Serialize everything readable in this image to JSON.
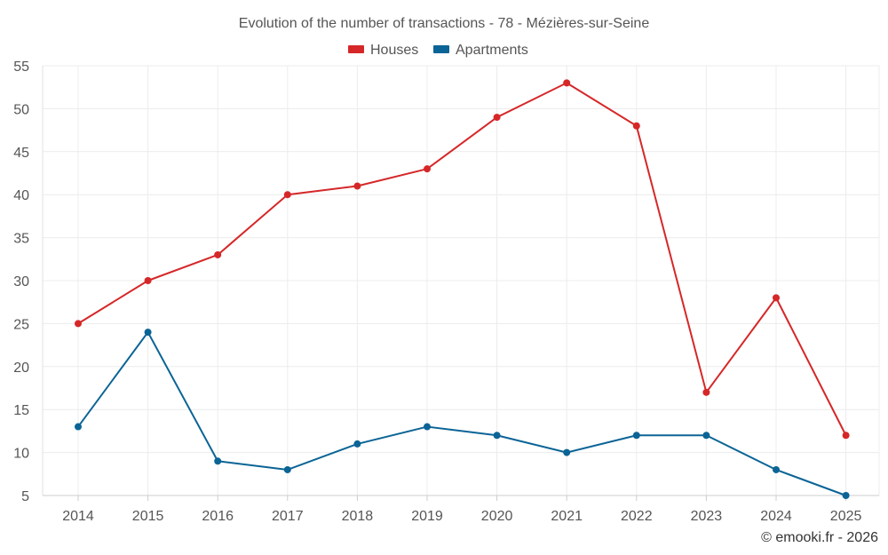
{
  "chart_data": {
    "type": "line",
    "title": "Evolution of the number of transactions - 78 - Mézières-sur-Seine",
    "x": [
      "2014",
      "2015",
      "2016",
      "2017",
      "2018",
      "2019",
      "2020",
      "2021",
      "2022",
      "2023",
      "2024",
      "2025"
    ],
    "series": [
      {
        "name": "Houses",
        "color": "#d62728",
        "values": [
          25,
          30,
          33,
          40,
          41,
          43,
          49,
          53,
          48,
          17,
          28,
          12
        ]
      },
      {
        "name": "Apartments",
        "color": "#0b6496",
        "values": [
          13,
          24,
          9,
          8,
          11,
          13,
          12,
          10,
          12,
          12,
          8,
          5
        ]
      }
    ],
    "xlabel": "",
    "ylabel": "",
    "ylim": [
      5,
      55
    ],
    "yticks": [
      "5",
      "10",
      "15",
      "20",
      "25",
      "30",
      "35",
      "40",
      "45",
      "50",
      "55"
    ],
    "grid": true,
    "legend": "top-center"
  },
  "credit": "© emooki.fr - 2026"
}
